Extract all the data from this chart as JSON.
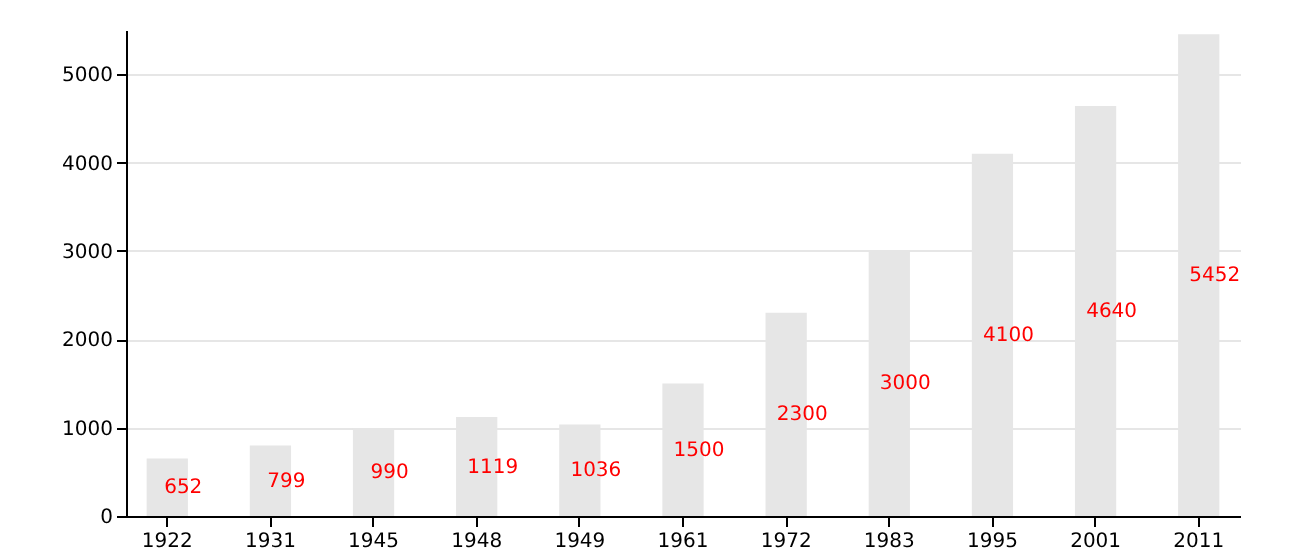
{
  "chart_data": {
    "type": "bar",
    "categories": [
      "1922",
      "1931",
      "1945",
      "1948",
      "1949",
      "1961",
      "1972",
      "1983",
      "1995",
      "2001",
      "2011"
    ],
    "values": [
      652,
      799,
      990,
      1119,
      1036,
      1500,
      2300,
      3000,
      4100,
      4640,
      5452
    ],
    "color": "#e6e6e6",
    "data_labels": true,
    "grid": "y",
    "ylim": [
      0,
      5500
    ],
    "yticks": [
      0,
      1000,
      2000,
      3000,
      4000,
      5000
    ]
  }
}
